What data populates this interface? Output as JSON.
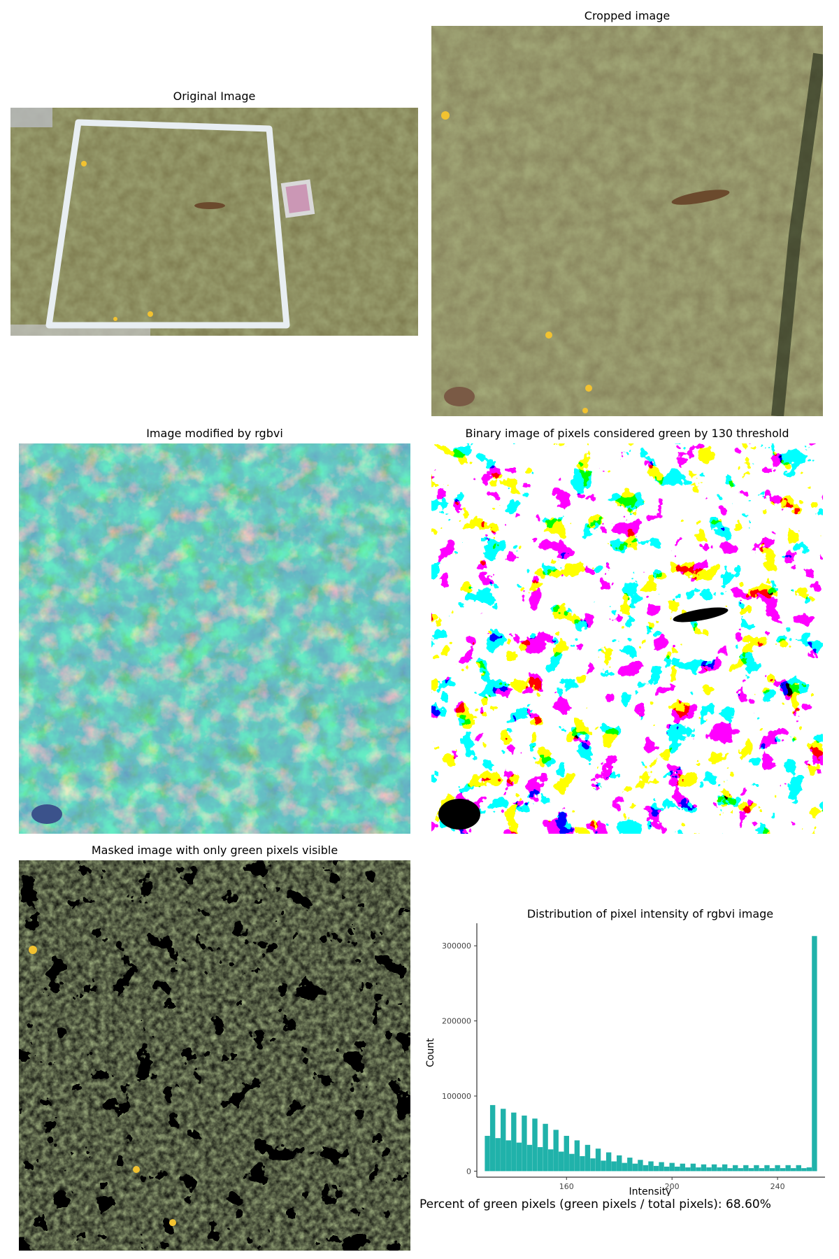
{
  "panels": {
    "original_title": "Original Image",
    "cropped_title": "Cropped image",
    "rgbvi_title": "Image modified by rgbvi",
    "binary_title": "Binary image of pixels considered green by 130 threshold",
    "masked_title": "Masked image with only green pixels visible"
  },
  "summary": {
    "text": "Percent of green pixels (green pixels / total pixels): 68.60%"
  },
  "colors": {
    "bar": "#20b2aa",
    "grass": "#6b7a3e",
    "viridis_low": "#3b528b",
    "viridis_mid": "#21918c",
    "viridis_high": "#fde725"
  },
  "chart_data": {
    "type": "bar",
    "title": "Distribution of pixel intensity of rgbvi image",
    "xlabel": "Intensity",
    "ylabel": "Count",
    "xlim": [
      126,
      258
    ],
    "ylim": [
      -8000,
      330000
    ],
    "xticks": [
      160,
      200,
      240
    ],
    "yticks": [
      0,
      100000,
      200000,
      300000
    ],
    "x": [
      130,
      132,
      134,
      136,
      138,
      140,
      142,
      144,
      146,
      148,
      150,
      152,
      154,
      156,
      158,
      160,
      162,
      164,
      166,
      168,
      170,
      172,
      174,
      176,
      178,
      180,
      182,
      184,
      186,
      188,
      190,
      192,
      194,
      196,
      198,
      200,
      202,
      204,
      206,
      208,
      210,
      212,
      214,
      216,
      218,
      220,
      222,
      224,
      226,
      228,
      230,
      232,
      234,
      236,
      238,
      240,
      242,
      244,
      246,
      248,
      250,
      252,
      254
    ],
    "values": [
      47000,
      88000,
      44000,
      83000,
      41000,
      78000,
      38000,
      74000,
      35000,
      70000,
      32000,
      63000,
      29000,
      55000,
      26000,
      47000,
      23000,
      41000,
      20000,
      35000,
      17000,
      30000,
      14000,
      25000,
      13000,
      21000,
      11000,
      18000,
      10000,
      15000,
      8000,
      13000,
      7000,
      12000,
      6000,
      11000,
      6000,
      10000,
      5000,
      10000,
      5000,
      9000,
      5000,
      9000,
      5000,
      9000,
      4000,
      8000,
      4000,
      8000,
      4000,
      8000,
      4000,
      8000,
      4000,
      8000,
      4000,
      8000,
      4000,
      8000,
      4000,
      5000,
      313000
    ]
  }
}
